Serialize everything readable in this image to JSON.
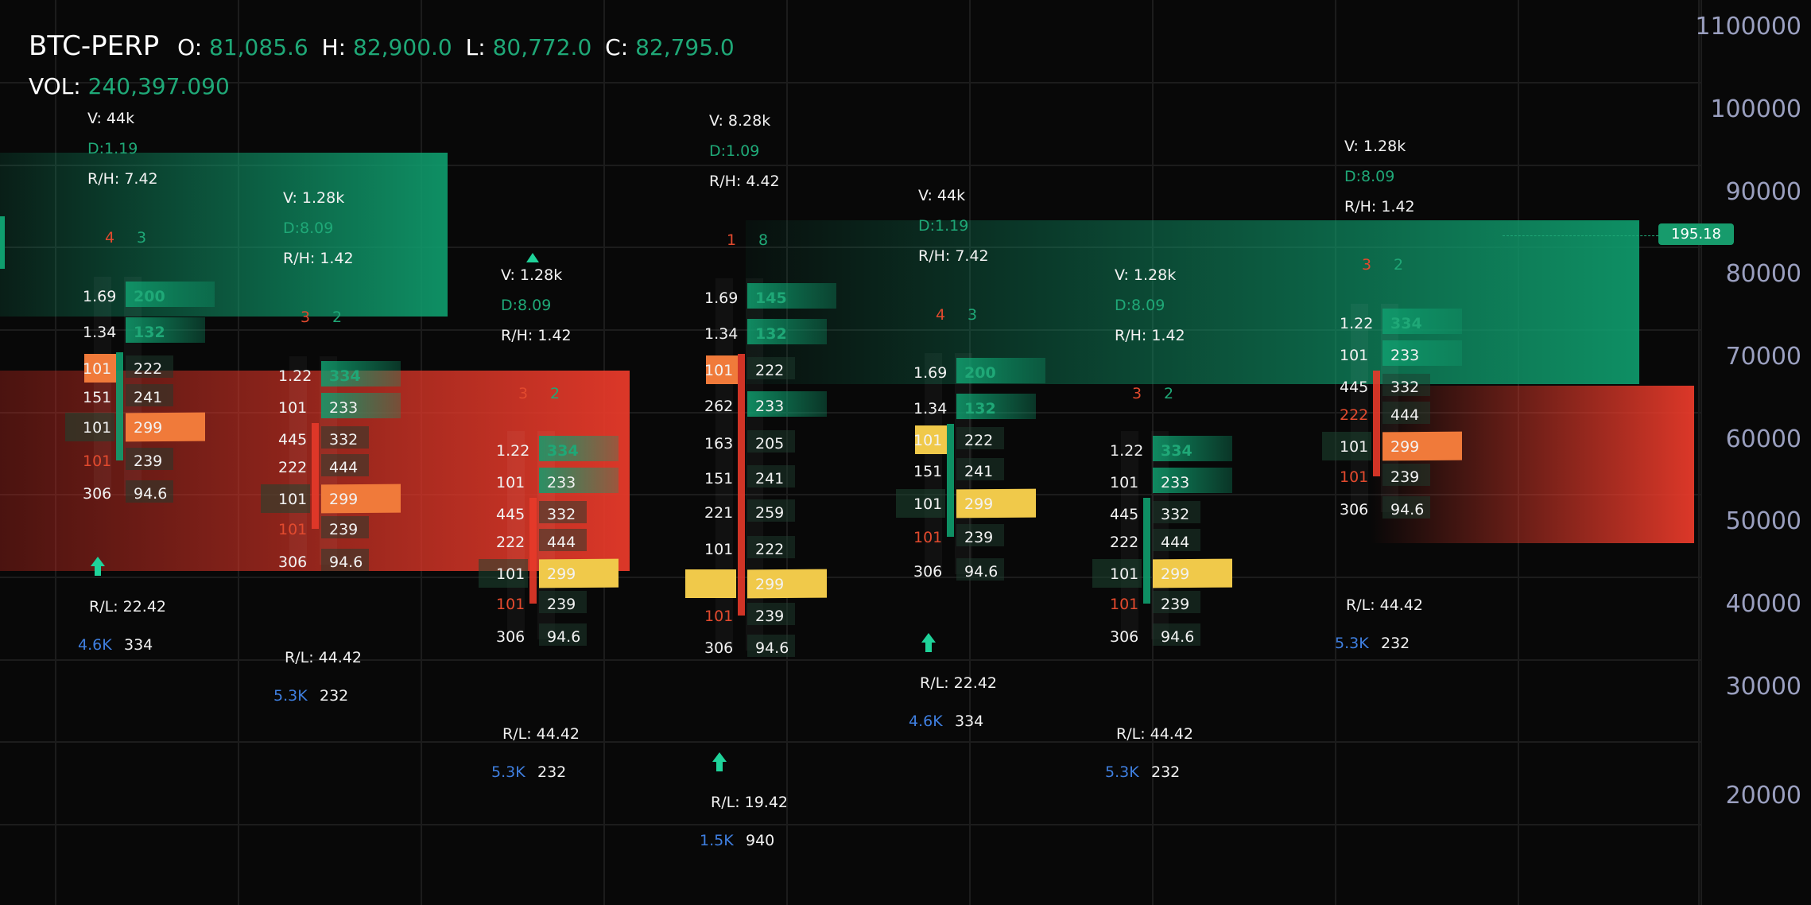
{
  "header": {
    "symbol": "BTC-PERP",
    "open_label": "O:",
    "open": "81,085.6",
    "high_label": "H:",
    "high": "82,900.0",
    "low_label": "L:",
    "low": "80,772.0",
    "close_label": "C:",
    "close": "82,795.0",
    "vol_label": "VOL:",
    "vol": "240,397.090"
  },
  "price_axis": {
    "ticks": [
      "1100000",
      "100000",
      "90000",
      "80000",
      "70000",
      "60000",
      "50000",
      "40000",
      "30000",
      "20000"
    ],
    "current_price_tag": "195.18"
  },
  "colors": {
    "background": "#080808",
    "bid_green": "#0f9e6e",
    "ask_red": "#e73a2a",
    "imbalance_yellow": "#f0c94a",
    "imbalance_orange": "#f07a3a",
    "text_green": "#1fa877",
    "text_blue": "#3f7fe0",
    "axis_text": "#9a9fbf"
  },
  "candles": [
    {
      "stats": {
        "v": "V: 44k",
        "d": "D:1.19",
        "rh": "R/H: 7.42"
      },
      "counts": [
        "4",
        "3"
      ],
      "rows": [
        [
          "1.69",
          "200"
        ],
        [
          "1.34",
          "132"
        ],
        [
          "101",
          "222"
        ],
        [
          "151",
          "241"
        ],
        [
          "101",
          "299"
        ],
        [
          "101",
          "239"
        ],
        [
          "306",
          "94.6"
        ]
      ],
      "arrow": "up-arrow-icon",
      "rl": "R/L: 22.42",
      "foot": [
        "4.6K",
        "334"
      ]
    },
    {
      "stats": {
        "v": "V: 1.28k",
        "d": "D:8.09",
        "rh": "R/H: 1.42"
      },
      "counts": [
        "3",
        "2"
      ],
      "rows": [
        [
          "1.22",
          "334"
        ],
        [
          "101",
          "233"
        ],
        [
          "445",
          "332"
        ],
        [
          "222",
          "444"
        ],
        [
          "101",
          "299"
        ],
        [
          "101",
          "239"
        ],
        [
          "306",
          "94.6"
        ]
      ],
      "rl": "R/L: 44.42",
      "foot": [
        "5.3K",
        "232"
      ]
    },
    {
      "stats": {
        "v": "V: 1.28k",
        "d": "D:8.09",
        "rh": "R/H: 1.42"
      },
      "counts": [
        "3",
        "2"
      ],
      "arrow": "up-triangle-icon",
      "rows": [
        [
          "1.22",
          "334"
        ],
        [
          "101",
          "233"
        ],
        [
          "445",
          "332"
        ],
        [
          "222",
          "444"
        ],
        [
          "101",
          "299"
        ],
        [
          "101",
          "239"
        ],
        [
          "306",
          "94.6"
        ]
      ],
      "rl": "R/L: 44.42",
      "foot": [
        "5.3K",
        "232"
      ]
    },
    {
      "stats": {
        "v": "V: 8.28k",
        "d": "D:1.09",
        "rh": "R/H: 4.42"
      },
      "counts": [
        "1",
        "8"
      ],
      "rows": [
        [
          "1.69",
          "145"
        ],
        [
          "1.34",
          "132"
        ],
        [
          "101",
          "222"
        ],
        [
          "262",
          "233"
        ],
        [
          "163",
          "205"
        ],
        [
          "151",
          "241"
        ],
        [
          "221",
          "259"
        ],
        [
          "101",
          "222"
        ],
        [
          "",
          "299"
        ],
        [
          "101",
          "239"
        ],
        [
          "306",
          "94.6"
        ]
      ],
      "arrow": "up-arrow-icon",
      "rl": "R/L: 19.42",
      "foot": [
        "1.5K",
        "940"
      ]
    },
    {
      "stats": {
        "v": "V: 44k",
        "d": "D:1.19",
        "rh": "R/H: 7.42"
      },
      "counts": [
        "4",
        "3"
      ],
      "rows": [
        [
          "1.69",
          "200"
        ],
        [
          "1.34",
          "132"
        ],
        [
          "101",
          "222"
        ],
        [
          "151",
          "241"
        ],
        [
          "101",
          "299"
        ],
        [
          "101",
          "239"
        ],
        [
          "306",
          "94.6"
        ]
      ],
      "arrow": "up-arrow-icon",
      "rl": "R/L: 22.42",
      "foot": [
        "4.6K",
        "334"
      ]
    },
    {
      "stats": {
        "v": "V: 1.28k",
        "d": "D:8.09",
        "rh": "R/H: 1.42"
      },
      "counts": [
        "3",
        "2"
      ],
      "rows": [
        [
          "1.22",
          "334"
        ],
        [
          "101",
          "233"
        ],
        [
          "445",
          "332"
        ],
        [
          "222",
          "444"
        ],
        [
          "101",
          "299"
        ],
        [
          "101",
          "239"
        ],
        [
          "306",
          "94.6"
        ]
      ],
      "rl": "R/L: 44.42",
      "foot": [
        "5.3K",
        "232"
      ]
    },
    {
      "stats": {
        "v": "V: 1.28k",
        "d": "D:8.09",
        "rh": "R/H: 1.42"
      },
      "counts": [
        "3",
        "2"
      ],
      "rows": [
        [
          "1.22",
          "334"
        ],
        [
          "101",
          "233"
        ],
        [
          "445",
          "332"
        ],
        [
          "222",
          "444"
        ],
        [
          "101",
          "299"
        ],
        [
          "101",
          "239"
        ],
        [
          "306",
          "94.6"
        ]
      ],
      "rl": "R/L: 44.42",
      "foot": [
        "5.3K",
        "232"
      ]
    }
  ]
}
